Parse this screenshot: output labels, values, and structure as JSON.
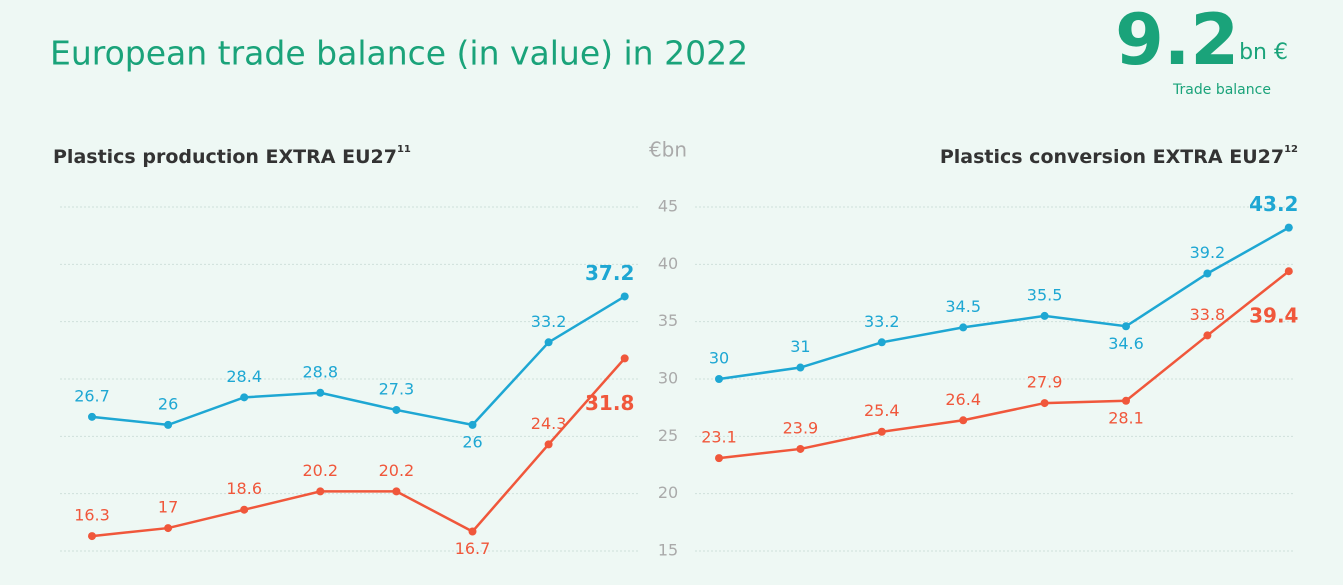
{
  "header": {
    "title": "European trade balance (in value) in 2022",
    "kpi_value": "9.2",
    "kpi_unit": "bn €",
    "kpi_caption": "Trade balance"
  },
  "chart_data": [
    {
      "type": "line",
      "title": "Plastics production EXTRA EU27",
      "note": "11",
      "ylabel": "€bn",
      "ylim": [
        15,
        45
      ],
      "yticks": [
        15,
        20,
        25,
        30,
        35,
        40,
        45
      ],
      "grid": true,
      "series": [
        {
          "color": "#1ea7d3",
          "values": [
            26.7,
            26,
            28.4,
            28.8,
            27.3,
            26,
            33.2,
            37.2
          ]
        },
        {
          "color": "#f0573b",
          "values": [
            16.3,
            17,
            18.6,
            20.2,
            20.2,
            16.7,
            24.3,
            31.8
          ]
        }
      ]
    },
    {
      "type": "line",
      "title": "Plastics conversion EXTRA EU27",
      "note": "12",
      "ylim": [
        15,
        45
      ],
      "yticks": [
        15,
        20,
        25,
        30,
        35,
        40,
        45
      ],
      "grid": true,
      "series": [
        {
          "color": "#1ea7d3",
          "values": [
            30,
            31,
            33.2,
            34.5,
            35.5,
            34.6,
            39.2,
            43.2
          ]
        },
        {
          "color": "#f0573b",
          "values": [
            23.1,
            23.9,
            25.4,
            26.4,
            27.9,
            28.1,
            33.8,
            39.4
          ]
        }
      ]
    }
  ]
}
